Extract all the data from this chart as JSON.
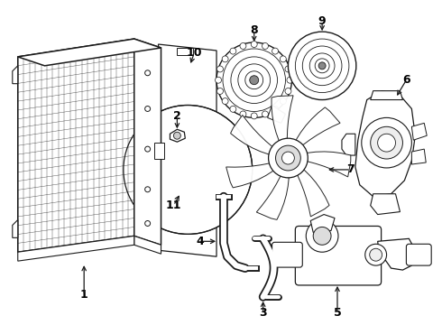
{
  "background_color": "#ffffff",
  "line_color": "#1a1a1a",
  "label_color": "#000000",
  "label_fontsize": 9,
  "label_fontweight": "bold",
  "fig_width": 4.9,
  "fig_height": 3.6,
  "dpi": 100
}
